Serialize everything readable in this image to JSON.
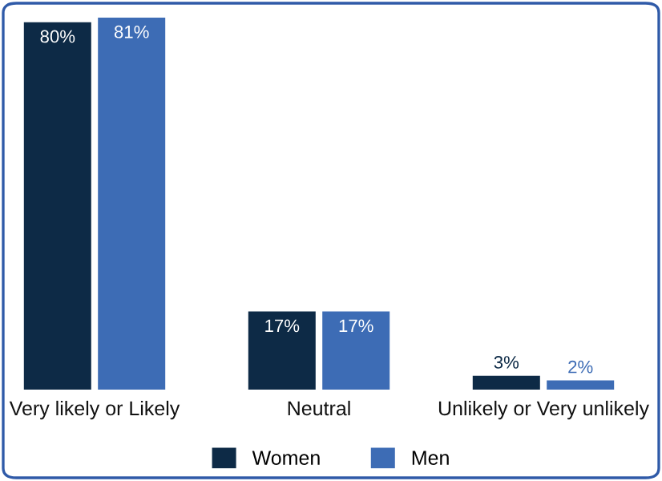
{
  "chart_data": {
    "type": "bar",
    "categories": [
      "Very likely or Likely",
      "Neutral",
      "Unlikely or Very unlikely"
    ],
    "series": [
      {
        "name": "Women",
        "color": "#0d2a46",
        "values": [
          80,
          17,
          3
        ],
        "value_labels": [
          "80%",
          "17%",
          "3%"
        ]
      },
      {
        "name": "Men",
        "color": "#3d6cb5",
        "values": [
          81,
          17,
          2
        ],
        "value_labels": [
          "81%",
          "17%",
          "2%"
        ]
      }
    ],
    "legend": "bottom",
    "grid": false
  }
}
